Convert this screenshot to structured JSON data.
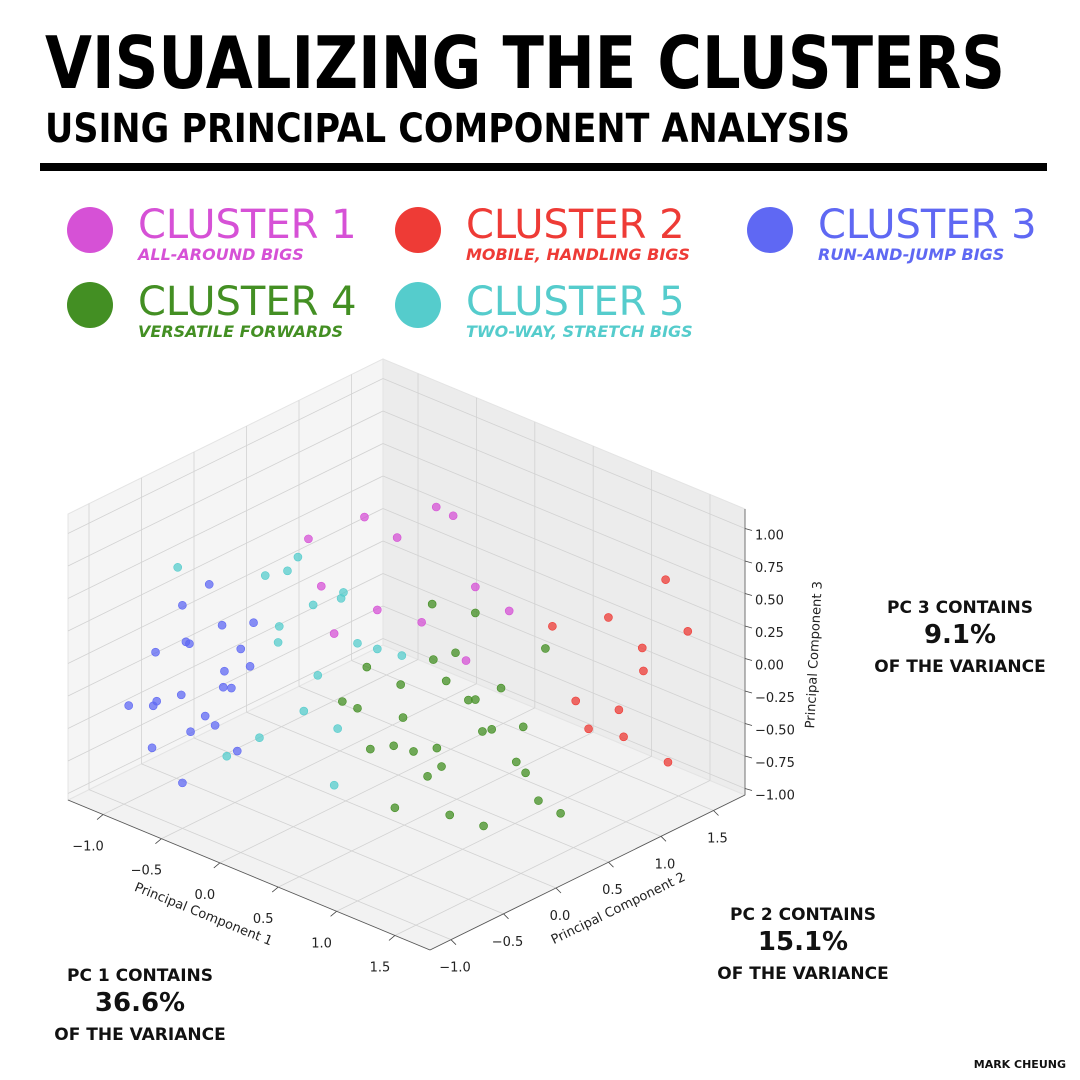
{
  "title": "VISUALIZING THE CLUSTERS",
  "subtitle": "USING PRINCIPAL COMPONENT ANALYSIS",
  "credit": "MARK CHEUNG",
  "annotations": [
    {
      "lines": [
        "PC 1 CONTAINS",
        "36.6%",
        "OF THE VARIANCE"
      ]
    },
    {
      "lines": [
        "PC 2 CONTAINS",
        "15.1%",
        "OF THE VARIANCE"
      ]
    },
    {
      "lines": [
        "PC 3 CONTAINS",
        "9.1%",
        "OF THE VARIANCE"
      ]
    }
  ],
  "chart_data": {
    "type": "scatter3d",
    "grid": true,
    "xlabel": "Principal Component 1",
    "ylabel": "Principal Component 2",
    "zlabel": "Principal Component 3",
    "xlim": [
      -1.3,
      1.8
    ],
    "ylim": [
      -1.2,
      1.8
    ],
    "zlim": [
      -1.05,
      1.15
    ],
    "xticks": [
      {
        "value": -1,
        "label": "−1.0"
      },
      {
        "value": -0.5,
        "label": "−0.5"
      },
      {
        "value": 0,
        "label": "0.0"
      },
      0.5,
      {
        "value": 1,
        "label": "1.0"
      },
      1.5
    ],
    "yticks": [
      {
        "value": -1,
        "label": "−1.0"
      },
      {
        "value": -0.5,
        "label": "−0.5"
      },
      {
        "value": 0,
        "label": "0.0"
      },
      0.5,
      {
        "value": 1,
        "label": "1.0"
      },
      1.5
    ],
    "zticks": [
      {
        "value": -1,
        "label": "−1.00"
      },
      {
        "value": -0.75,
        "label": "−0.75"
      },
      {
        "value": -0.5,
        "label": "−0.50"
      },
      {
        "value": -0.25,
        "label": "−0.25"
      },
      {
        "value": 0,
        "label": "0.00"
      },
      0.25,
      {
        "value": 0.5,
        "label": "0.50"
      },
      0.75,
      {
        "value": 1,
        "label": "1.00"
      }
    ],
    "series": [
      {
        "name": "CLUSTER 1",
        "description": "ALL-AROUND BIGS",
        "color": "#d651d6",
        "x": [
          0.1,
          0.2,
          -0.2,
          -0.1,
          -0.5,
          0.0,
          0.2,
          -0.3,
          0.3,
          0.5,
          -0.1,
          0.4
        ],
        "y": [
          0.75,
          0.8,
          0.4,
          0.6,
          0.2,
          0.3,
          0.5,
          0.1,
          0.9,
          1.0,
          0.0,
          0.7
        ],
        "z": [
          0.95,
          0.9,
          0.9,
          0.7,
          0.7,
          0.3,
          0.2,
          0.45,
          0.35,
          0.2,
          0.2,
          -0.1
        ]
      },
      {
        "name": "CLUSTER 2",
        "description": "MOBILE, HANDLING BIGS",
        "color": "#ee3b36",
        "x": [
          0.9,
          1.2,
          1.3,
          1.5,
          0.8,
          1.0,
          0.6,
          1.1,
          1.3,
          0.9,
          1.4
        ],
        "y": [
          1.5,
          1.5,
          1.6,
          1.4,
          1.3,
          1.2,
          1.3,
          1.6,
          1.2,
          1.6,
          1.7
        ],
        "z": [
          0.1,
          -0.2,
          0.5,
          -0.75,
          -0.5,
          -0.6,
          0.0,
          -0.1,
          -0.55,
          -0.65,
          0.1
        ]
      },
      {
        "name": "CLUSTER 3",
        "description": "RUN-AND-JUMP BIGS",
        "color": "#5f68f3",
        "x": [
          -0.9,
          -0.8,
          -0.7,
          -0.95,
          -0.6,
          -0.5,
          -0.85,
          -0.4,
          -0.7,
          -0.6,
          -0.3,
          -1.0,
          -0.75,
          -0.5,
          -0.9,
          -0.65,
          -0.55,
          -0.45,
          -0.8,
          -0.35,
          -1.05,
          -0.7
        ],
        "y": [
          -0.8,
          -0.6,
          -0.7,
          -0.5,
          -0.9,
          -0.6,
          -0.9,
          -0.8,
          -0.4,
          -0.5,
          -0.7,
          -0.7,
          -1.0,
          -1.0,
          -0.3,
          -0.8,
          -0.3,
          -0.5,
          -0.2,
          -0.95,
          -0.9,
          -0.1
        ],
        "z": [
          -0.3,
          0.1,
          -0.5,
          0.3,
          -0.1,
          0.0,
          -0.6,
          -0.3,
          0.2,
          -0.2,
          -0.5,
          0.0,
          -0.2,
          -0.7,
          0.4,
          0.25,
          -0.1,
          0.15,
          -0.4,
          -0.15,
          -0.35,
          0.1
        ]
      },
      {
        "name": "CLUSTER 4",
        "description": "VERSATILE FORWARDS",
        "color": "#438f23",
        "x": [
          0.2,
          0.4,
          0.6,
          0.8,
          0.3,
          0.5,
          0.7,
          0.9,
          1.0,
          0.1,
          0.6,
          0.4,
          0.8,
          1.1,
          0.3,
          0.7,
          0.5,
          0.2,
          0.9,
          1.2,
          0.4,
          0.6,
          0.0,
          1.0,
          0.8,
          0.3,
          0.55,
          0.75,
          1.3,
          0.15
        ],
        "y": [
          0.3,
          0.1,
          0.2,
          0.5,
          -0.1,
          0.4,
          0.0,
          0.3,
          0.6,
          0.0,
          -0.2,
          0.6,
          0.1,
          0.4,
          0.5,
          0.7,
          -0.1,
          0.6,
          0.9,
          0.5,
          0.2,
          0.5,
          0.2,
          0.2,
          0.8,
          0.9,
          0.3,
          0.4,
          0.6,
          -0.2
        ],
        "z": [
          -0.2,
          -0.3,
          -0.5,
          -0.4,
          -0.5,
          -0.1,
          -0.6,
          -0.3,
          -0.7,
          -0.3,
          -0.8,
          0.0,
          -0.9,
          -0.5,
          -0.05,
          -0.2,
          -0.4,
          0.3,
          0.1,
          -0.8,
          -0.6,
          -0.25,
          -0.1,
          -0.95,
          -0.5,
          0.15,
          -0.7,
          -0.15,
          -0.9,
          -0.15
        ]
      },
      {
        "name": "CLUSTER 5",
        "description": "TWO-WAY, STRETCH BIGS",
        "color": "#55cccc",
        "x": [
          -0.3,
          -0.1,
          -0.5,
          -0.2,
          0.0,
          -0.4,
          0.1,
          -0.6,
          -0.2,
          0.2,
          -0.3,
          0.0,
          -0.9,
          -0.15,
          0.3,
          -0.05,
          0.35,
          -0.4
        ],
        "y": [
          -0.3,
          -0.2,
          0.1,
          -0.6,
          -0.4,
          -0.2,
          0.0,
          -0.1,
          0.2,
          -0.3,
          -0.8,
          0.3,
          -0.6,
          -0.1,
          0.2,
          -0.5,
          -0.5,
          0.4
        ],
        "z": [
          0.3,
          0.5,
          0.6,
          -0.4,
          -0.2,
          0.1,
          0.2,
          0.5,
          0.4,
          -0.3,
          -0.5,
          0.0,
          0.65,
          -0.1,
          0.1,
          0.9,
          -0.6,
          0.2
        ]
      }
    ]
  }
}
